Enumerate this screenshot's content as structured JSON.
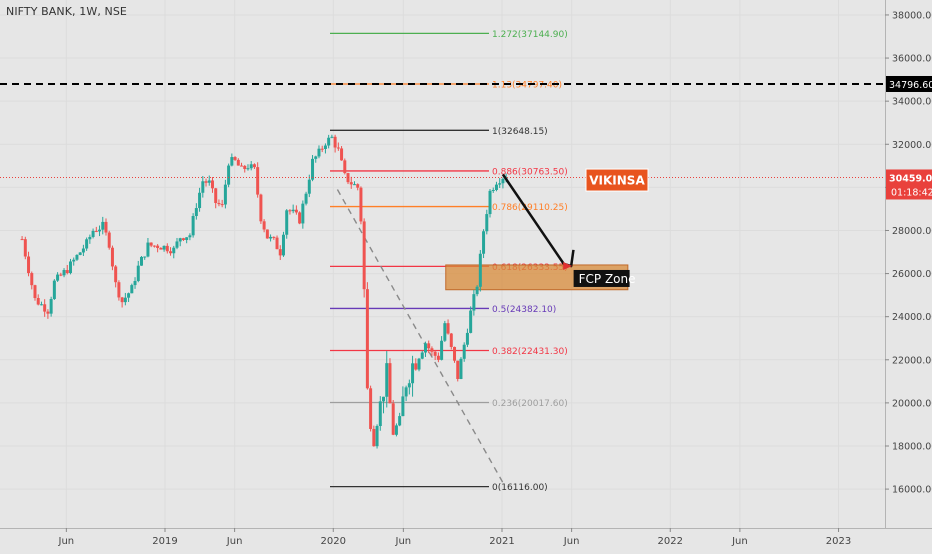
{
  "symbol_label": "NIFTY BANK, 1W, NSE",
  "colors": {
    "background": "#e6e6e6",
    "candle_up": "#26a69a",
    "candle_down": "#ef5350",
    "fib_1272": "#4caf50",
    "fib_red": "#f23645",
    "fib_orange": "#ff7f27",
    "fib_purple": "#673ab7",
    "fib_gray": "#9e9e9e",
    "fib_black": "#333333",
    "zone_fill": "#d88b3a",
    "badge": "#e8541e",
    "current_price": "#e9413c",
    "annotation_arrow": "#111111"
  },
  "chart_data": {
    "type": "candlestick",
    "x_axis": {
      "type": "time",
      "ticks": [
        "Jun",
        "2019",
        "Jun",
        "2020",
        "Jun",
        "2021",
        "Jun",
        "2022",
        "Jun",
        "2023"
      ],
      "tick_dates": [
        "2018-06-01",
        "2019-01-01",
        "2019-06-01",
        "2020-01-01",
        "2020-06-01",
        "2021-01-01",
        "2021-06-01",
        "2022-01-01",
        "2022-06-01",
        "2023-01-01"
      ]
    },
    "y_axis": {
      "ticks": [
        16000,
        18000,
        20000,
        22000,
        24000,
        26000,
        28000,
        30000,
        32000,
        34000,
        36000,
        38000
      ],
      "tick_labels": [
        "16000.00",
        "18000.00",
        "20000.00",
        "22000.00",
        "24000.00",
        "26000.00",
        "28000.00",
        "30000.00",
        "32000.00",
        "34000.00",
        "36000.00",
        "38000.00"
      ],
      "range": [
        14800,
        38700
      ]
    },
    "price_path": [
      [
        "2018-02-25",
        27600
      ],
      [
        "2018-03-25",
        24800
      ],
      [
        "2018-04-22",
        24300
      ],
      [
        "2018-05-06",
        25600
      ],
      [
        "2018-06-03",
        26200
      ],
      [
        "2018-06-24",
        26800
      ],
      [
        "2018-07-15",
        27400
      ],
      [
        "2018-07-29",
        28000
      ],
      [
        "2018-08-19",
        28200
      ],
      [
        "2018-09-02",
        27400
      ],
      [
        "2018-09-16",
        25500
      ],
      [
        "2018-09-30",
        24700
      ],
      [
        "2018-10-21",
        25300
      ],
      [
        "2018-11-04",
        26300
      ],
      [
        "2018-11-25",
        27300
      ],
      [
        "2018-12-16",
        27300
      ],
      [
        "2019-01-06",
        27200
      ],
      [
        "2019-01-20",
        27100
      ],
      [
        "2019-02-03",
        27700
      ],
      [
        "2019-02-24",
        27800
      ],
      [
        "2019-03-10",
        29200
      ],
      [
        "2019-03-24",
        30300
      ],
      [
        "2019-04-07",
        30200
      ],
      [
        "2019-04-21",
        29300
      ],
      [
        "2019-05-05",
        29100
      ],
      [
        "2019-05-19",
        31200
      ],
      [
        "2019-06-02",
        31200
      ],
      [
        "2019-06-16",
        30800
      ],
      [
        "2019-06-30",
        31000
      ],
      [
        "2019-07-14",
        30800
      ],
      [
        "2019-07-28",
        28600
      ],
      [
        "2019-08-11",
        27700
      ],
      [
        "2019-08-25",
        27500
      ],
      [
        "2019-09-08",
        27000
      ],
      [
        "2019-09-22",
        29000
      ],
      [
        "2019-10-06",
        28800
      ],
      [
        "2019-10-20",
        28500
      ],
      [
        "2019-11-03",
        29800
      ],
      [
        "2019-11-17",
        31200
      ],
      [
        "2019-12-01",
        31600
      ],
      [
        "2019-12-15",
        32100
      ],
      [
        "2019-12-29",
        32300
      ],
      [
        "2020-01-12",
        31700
      ],
      [
        "2020-01-26",
        30500
      ],
      [
        "2020-02-09",
        30200
      ],
      [
        "2020-02-23",
        30000
      ],
      [
        "2020-03-01",
        28500
      ],
      [
        "2020-03-08",
        25200
      ],
      [
        "2020-03-15",
        20500
      ],
      [
        "2020-03-22",
        19000
      ],
      [
        "2020-03-29",
        18200
      ],
      [
        "2020-04-12",
        20000
      ],
      [
        "2020-04-26",
        21300
      ],
      [
        "2020-05-10",
        18600
      ],
      [
        "2020-05-24",
        19200
      ],
      [
        "2020-06-07",
        21000
      ],
      [
        "2020-06-21",
        21800
      ],
      [
        "2020-07-05",
        22200
      ],
      [
        "2020-07-19",
        22800
      ],
      [
        "2020-08-02",
        22300
      ],
      [
        "2020-08-16",
        22100
      ],
      [
        "2020-08-30",
        23700
      ],
      [
        "2020-09-13",
        22500
      ],
      [
        "2020-09-27",
        21200
      ],
      [
        "2020-10-11",
        22700
      ],
      [
        "2020-10-25",
        24200
      ],
      [
        "2020-11-08",
        25500
      ],
      [
        "2020-11-22",
        28000
      ],
      [
        "2020-12-06",
        29800
      ],
      [
        "2020-12-20",
        30300
      ],
      [
        "2021-01-03",
        30500
      ],
      [
        "2021-01-10",
        30459
      ]
    ],
    "key_levels": {
      "high": 32648.15,
      "low": 16116.0,
      "last_price": 30459.0,
      "dashed_level": 34796.6
    },
    "fibonacci": [
      {
        "ratio": "1.272",
        "price": 37144.9,
        "label": "1.272(37144.90)",
        "color": "#4caf50"
      },
      {
        "ratio": "1.13",
        "price": 34797.4,
        "label": "1.13(34797.40)",
        "color": "#ff7f27"
      },
      {
        "ratio": "1",
        "price": 32648.15,
        "label": "1(32648.15)",
        "color": "#333333"
      },
      {
        "ratio": "0.886",
        "price": 30763.5,
        "label": "0.886(30763.50)",
        "color": "#f23645"
      },
      {
        "ratio": "0.786",
        "price": 29110.25,
        "label": "0.786(29110.25)",
        "color": "#ff7f27"
      },
      {
        "ratio": "0.618",
        "price": 26333.55,
        "label": "0.618(26333.55)",
        "color": "#f23645"
      },
      {
        "ratio": "0.5",
        "price": 24382.1,
        "label": "0.5(24382.10)",
        "color": "#673ab7"
      },
      {
        "ratio": "0.382",
        "price": 22431.3,
        "label": "0.382(22431.30)",
        "color": "#f23645"
      },
      {
        "ratio": "0.236",
        "price": 20017.6,
        "label": "0.236(20017.60)",
        "color": "#9e9e9e"
      },
      {
        "ratio": "0",
        "price": 16116.0,
        "label": "0(16116.00)",
        "color": "#333333"
      }
    ],
    "fcp_zone": {
      "date_from": "2020-09-01",
      "date_to": "2021-10-01",
      "price_from": 25250,
      "price_to": 26400
    },
    "projection_path": [
      [
        "2021-01-03",
        30600
      ],
      [
        "2021-05-15",
        26450
      ],
      [
        "2021-05-31",
        26350
      ],
      [
        "2021-06-05",
        27100
      ]
    ],
    "diagonal_trend": [
      [
        "2020-01-10",
        29900
      ],
      [
        "2021-01-03",
        16300
      ]
    ]
  },
  "annotations": {
    "fcp_zone_label": "FCP Zone",
    "badge_text": "VIKINSA"
  },
  "price_scale_labels": {
    "dashed_level": "34796.60",
    "last_price": "30459.00",
    "countdown": "01:18:42"
  }
}
